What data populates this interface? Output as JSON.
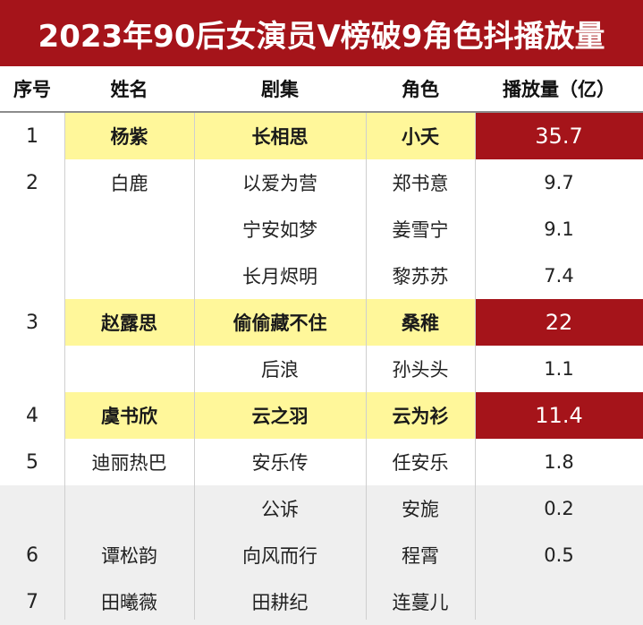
{
  "title": "2023年90后女演员V榜破9角色抖播放量",
  "headers": [
    "序号",
    "姓名",
    "剧集",
    "角色",
    "播放量（亿）"
  ],
  "chart_data": {
    "type": "table",
    "title": "2023年90后女演员V榜破9角色抖播放量",
    "columns": [
      "序号",
      "姓名",
      "剧集",
      "角色",
      "播放量（亿）"
    ],
    "rows": [
      {
        "rank": "1",
        "name": "杨紫",
        "drama": "长相思",
        "role": "小夭",
        "plays": "35.7",
        "highlight": true
      },
      {
        "rank": "2",
        "name": "白鹿",
        "drama": "以爱为营",
        "role": "郑书意",
        "plays": "9.7",
        "highlight": false
      },
      {
        "rank": "",
        "name": "",
        "drama": "宁安如梦",
        "role": "姜雪宁",
        "plays": "9.1",
        "highlight": false
      },
      {
        "rank": "",
        "name": "",
        "drama": "长月烬明",
        "role": "黎苏苏",
        "plays": "7.4",
        "highlight": false
      },
      {
        "rank": "3",
        "name": "赵露思",
        "drama": "偷偷藏不住",
        "role": "桑稚",
        "plays": "22",
        "highlight": true
      },
      {
        "rank": "",
        "name": "",
        "drama": "后浪",
        "role": "孙头头",
        "plays": "1.1",
        "highlight": false
      },
      {
        "rank": "4",
        "name": "虞书欣",
        "drama": "云之羽",
        "role": "云为衫",
        "plays": "11.4",
        "highlight": true
      },
      {
        "rank": "5",
        "name": "迪丽热巴",
        "drama": "安乐传",
        "role": "任安乐",
        "plays": "1.8",
        "highlight": false
      },
      {
        "rank": "",
        "name": "",
        "drama": "公诉",
        "role": "安旎",
        "plays": "0.2",
        "highlight": false,
        "gray": true
      },
      {
        "rank": "6",
        "name": "谭松韵",
        "drama": "向风而行",
        "role": "程霄",
        "plays": "0.5",
        "highlight": false,
        "gray": true
      },
      {
        "rank": "7",
        "name": "田曦薇",
        "drama": "田耕纪",
        "role": "连蔓儿",
        "plays": "",
        "highlight": false,
        "gray": true
      }
    ]
  },
  "colors": {
    "title_bg": "#a5141a",
    "highlight_bg": "#fff79a",
    "plays_highlight_bg": "#a5141a",
    "gray_row_bg": "#efefef"
  }
}
